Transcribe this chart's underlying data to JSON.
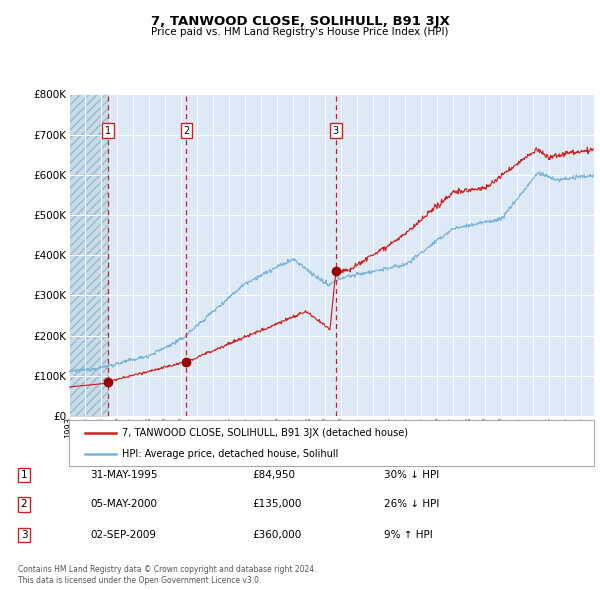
{
  "title": "7, TANWOOD CLOSE, SOLIHULL, B91 3JX",
  "subtitle": "Price paid vs. HM Land Registry's House Price Index (HPI)",
  "ylim": [
    0,
    800000
  ],
  "yticks": [
    0,
    100000,
    200000,
    300000,
    400000,
    500000,
    600000,
    700000,
    800000
  ],
  "hpi_color": "#7ab3d8",
  "price_color": "#cc2222",
  "marker_color": "#990000",
  "background_color": "#ddeaf5",
  "grid_color": "#ffffff",
  "transactions": [
    {
      "date": 1995.42,
      "price": 84950,
      "label": "1"
    },
    {
      "date": 2000.34,
      "price": 135000,
      "label": "2"
    },
    {
      "date": 2009.67,
      "price": 360000,
      "label": "3"
    }
  ],
  "legend_entries": [
    "7, TANWOOD CLOSE, SOLIHULL, B91 3JX (detached house)",
    "HPI: Average price, detached house, Solihull"
  ],
  "table_rows": [
    {
      "num": "1",
      "date": "31-MAY-1995",
      "price": "£84,950",
      "change": "30% ↓ HPI"
    },
    {
      "num": "2",
      "date": "05-MAY-2000",
      "price": "£135,000",
      "change": "26% ↓ HPI"
    },
    {
      "num": "3",
      "date": "02-SEP-2009",
      "price": "£360,000",
      "change": "9% ↑ HPI"
    }
  ],
  "footer": "Contains HM Land Registry data © Crown copyright and database right 2024.\nThis data is licensed under the Open Government Licence v3.0.",
  "xmin": 1993.0,
  "xmax": 2025.8,
  "hatch_end": 1995.42
}
